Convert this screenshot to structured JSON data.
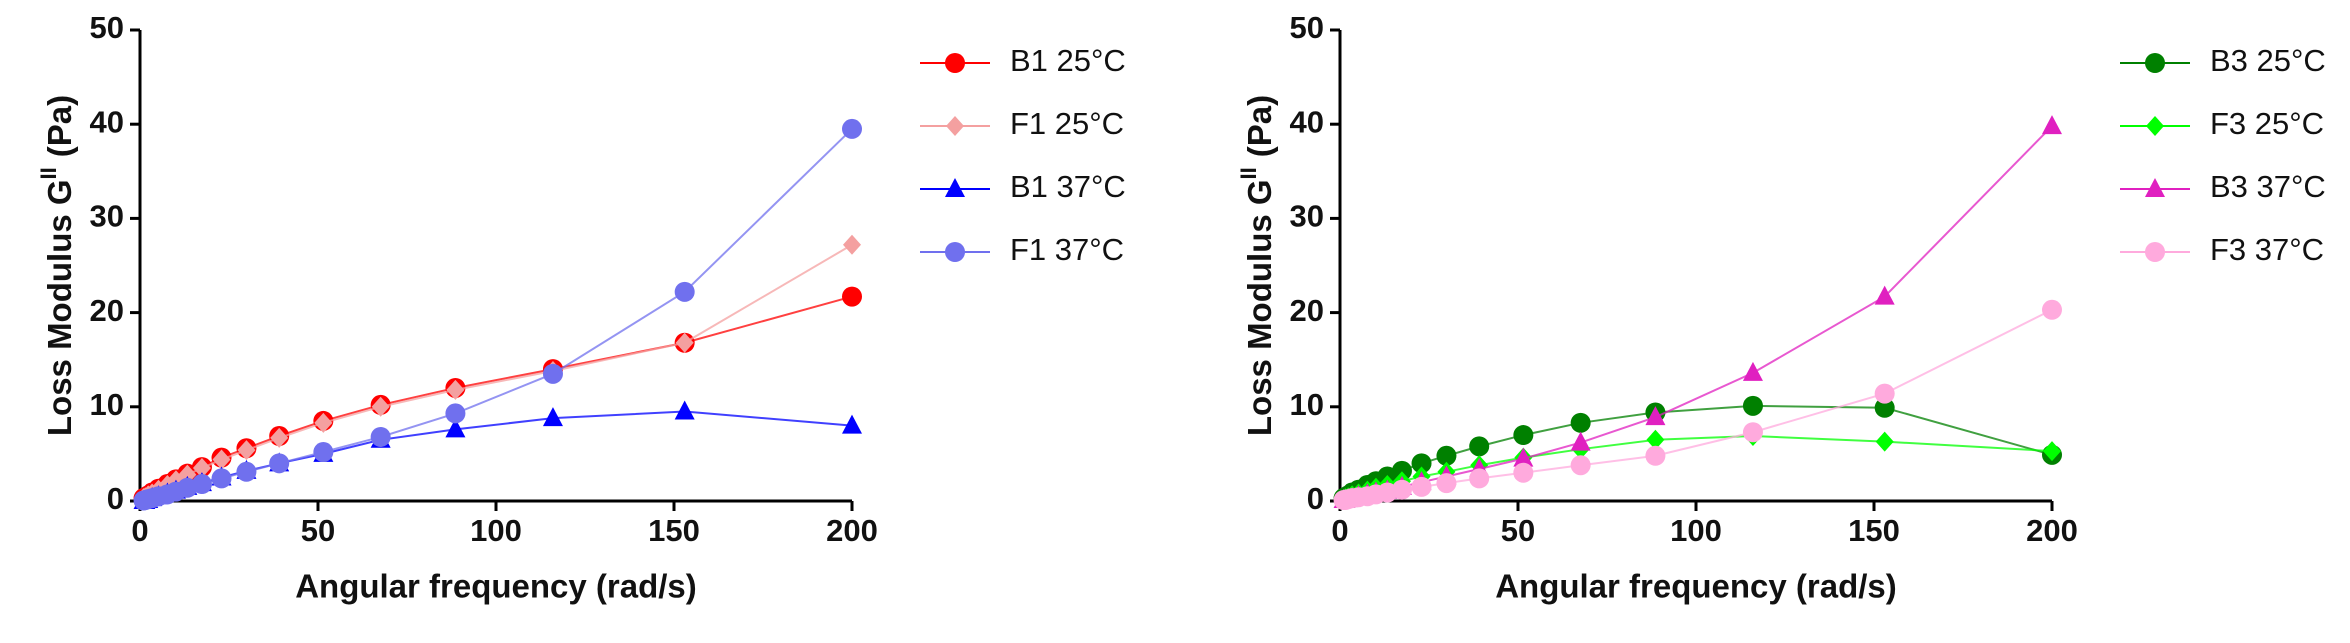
{
  "chart_data": [
    {
      "type": "line",
      "x_label": "Angular frequency (rad/s)",
      "y_label": {
        "main": "Loss  Modulus G",
        "sup": "II",
        "unit": "(Pa)"
      },
      "xlim": [
        0,
        200
      ],
      "xticks": [
        0,
        50,
        100,
        150,
        200
      ],
      "ylim": [
        0,
        50
      ],
      "yticks": [
        0,
        10,
        20,
        30,
        40,
        50
      ],
      "x": [
        1,
        1.5,
        2.3,
        3.4,
        5.2,
        7.7,
        10.1,
        13.3,
        17.4,
        22.9,
        29.9,
        39.1,
        51.5,
        67.6,
        88.6,
        116,
        153,
        200
      ],
      "series": [
        {
          "name": "B1 25°C",
          "color": "#ff0000",
          "marker": "circle",
          "values": [
            0.3,
            0.4,
            0.6,
            0.9,
            1.3,
            1.8,
            2.3,
            2.9,
            3.6,
            4.6,
            5.6,
            6.9,
            8.5,
            10.2,
            12,
            14,
            16.8,
            21.7
          ]
        },
        {
          "name": "F1 25°C",
          "color": "#f4a0a0",
          "marker": "diamond",
          "values": [
            0.3,
            0.4,
            0.6,
            0.8,
            1.2,
            1.7,
            2.2,
            2.8,
            3.5,
            4.4,
            5.4,
            6.7,
            8.3,
            10,
            11.8,
            13.8,
            16.8,
            27.2
          ]
        },
        {
          "name": "B1 37°C",
          "color": "#0000ff",
          "marker": "triangle",
          "values": [
            0,
            0,
            0.1,
            0.3,
            0.5,
            0.8,
            1.1,
            1.5,
            1.9,
            2.5,
            3.2,
            4,
            5,
            6.5,
            7.6,
            8.8,
            9.5,
            8
          ]
        },
        {
          "name": "F1 37°C",
          "color": "#7070ee",
          "marker": "circle",
          "values": [
            0.05,
            0.1,
            0.2,
            0.3,
            0.5,
            0.7,
            1,
            1.4,
            1.8,
            2.4,
            3.1,
            4,
            5.2,
            6.8,
            9.3,
            13.5,
            22.2,
            39.5
          ]
        }
      ]
    },
    {
      "type": "line",
      "x_label": "Angular frequency (rad/s)",
      "y_label": {
        "main": "Loss  Modulus G",
        "sup": "II",
        "unit": "(Pa)"
      },
      "xlim": [
        0,
        200
      ],
      "xticks": [
        0,
        50,
        100,
        150,
        200
      ],
      "ylim": [
        0,
        50
      ],
      "yticks": [
        0,
        10,
        20,
        30,
        40,
        50
      ],
      "x": [
        1,
        1.5,
        2.3,
        3.4,
        5.2,
        7.7,
        10.1,
        13.3,
        17.4,
        22.9,
        29.9,
        39.1,
        51.5,
        67.6,
        88.6,
        116,
        153,
        200
      ],
      "series": [
        {
          "name": "B3 25°C",
          "color": "#008000",
          "marker": "circle",
          "values": [
            0.3,
            0.4,
            0.6,
            0.9,
            1.2,
            1.7,
            2.1,
            2.6,
            3.2,
            4,
            4.8,
            5.8,
            7,
            8.3,
            9.4,
            10.1,
            9.9,
            4.9
          ]
        },
        {
          "name": "F3 25°C",
          "color": "#00ff00",
          "marker": "diamond",
          "values": [
            0.2,
            0.3,
            0.4,
            0.6,
            0.8,
            1.1,
            1.4,
            1.7,
            2.1,
            2.6,
            3.1,
            3.8,
            4.6,
            5.5,
            6.5,
            6.9,
            6.3,
            5.3
          ]
        },
        {
          "name": "B3 37°C",
          "color": "#e020c0",
          "marker": "triangle",
          "values": [
            0.1,
            0.1,
            0.2,
            0.3,
            0.5,
            0.7,
            0.9,
            1.1,
            1.5,
            2,
            2.6,
            3.4,
            4.5,
            6.2,
            8.9,
            13.6,
            21.7,
            39.8
          ]
        },
        {
          "name": "F3 37°C",
          "color": "#ffaadd",
          "marker": "circle",
          "values": [
            0.1,
            0.1,
            0.2,
            0.3,
            0.4,
            0.5,
            0.7,
            0.9,
            1.2,
            1.5,
            1.9,
            2.4,
            3,
            3.8,
            4.8,
            7.3,
            11.4,
            20.3
          ]
        }
      ]
    }
  ]
}
